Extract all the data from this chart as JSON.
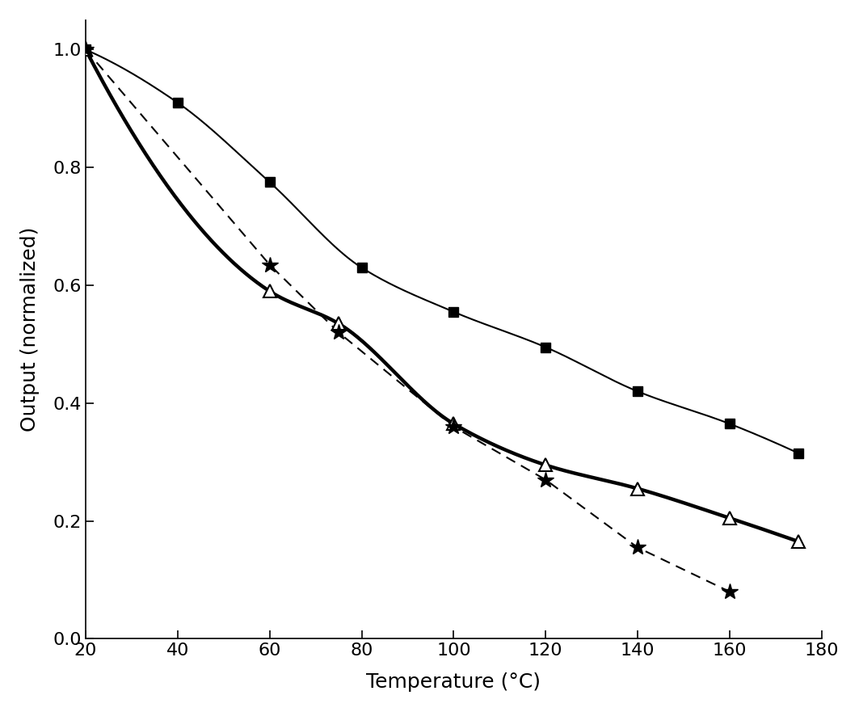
{
  "title": "",
  "xlabel": "Temperature (°C)",
  "ylabel": "Output (normalized)",
  "xlim": [
    20,
    180
  ],
  "ylim": [
    0.0,
    1.05
  ],
  "xticks": [
    20,
    40,
    60,
    80,
    100,
    120,
    140,
    160,
    180
  ],
  "yticks": [
    0.0,
    0.2,
    0.4,
    0.6,
    0.8,
    1.0
  ],
  "square_x": [
    20,
    40,
    60,
    80,
    100,
    120,
    140,
    160,
    175
  ],
  "square_y": [
    1.0,
    0.91,
    0.775,
    0.63,
    0.555,
    0.495,
    0.42,
    0.365,
    0.315
  ],
  "triangle_x": [
    20,
    60,
    75,
    100,
    120,
    140,
    160,
    175
  ],
  "triangle_y": [
    1.0,
    0.59,
    0.535,
    0.365,
    0.295,
    0.255,
    0.205,
    0.165
  ],
  "star_x": [
    20,
    60,
    75,
    100,
    120,
    140,
    160
  ],
  "star_y": [
    1.0,
    0.635,
    0.52,
    0.36,
    0.27,
    0.155,
    0.08
  ],
  "background_color": "#ffffff",
  "line_color": "#000000",
  "label_fontsize": 18,
  "tick_fontsize": 16
}
